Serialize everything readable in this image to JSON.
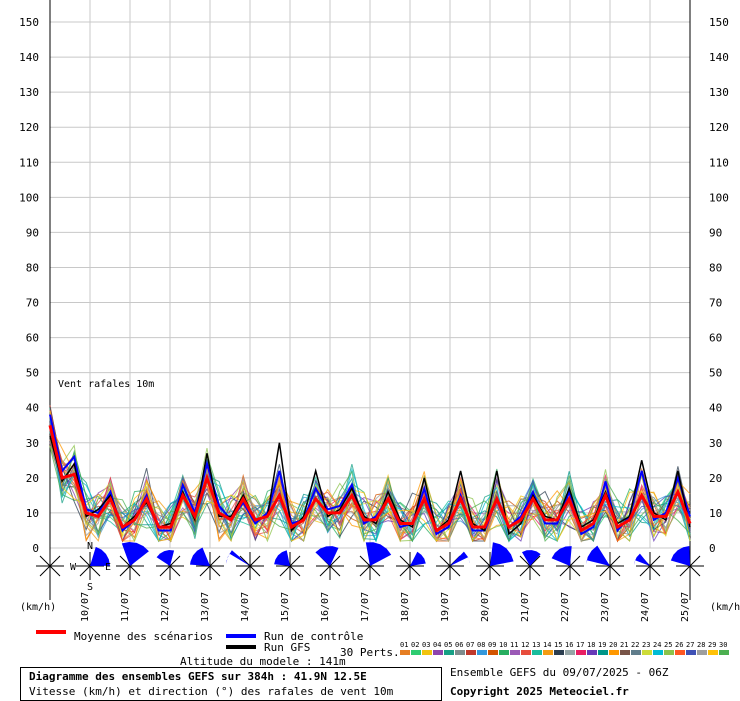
{
  "chart_data": {
    "type": "line",
    "y_unit_label": "(km/h)",
    "ylim": [
      0,
      150
    ],
    "y_ticks": [
      0,
      10,
      20,
      30,
      40,
      50,
      60,
      70,
      80,
      90,
      100,
      110,
      120,
      130,
      140,
      150
    ],
    "annotation": "Vent rafales 10m",
    "date_labels": [
      "10/07",
      "11/07",
      "12/07",
      "13/07",
      "14/07",
      "15/07",
      "16/07",
      "17/07",
      "18/07",
      "19/07",
      "20/07",
      "21/07",
      "22/07",
      "23/07",
      "24/07",
      "25/07"
    ],
    "series": [
      {
        "name": "Moyenne des scénarios",
        "color": "#ff0000",
        "values": [
          35,
          20,
          21,
          10,
          9,
          14,
          6,
          8,
          14,
          6,
          6,
          15,
          9,
          20,
          10,
          8,
          14,
          8,
          9,
          15,
          6,
          8,
          14,
          10,
          10,
          15,
          8,
          8,
          14,
          7,
          7,
          14,
          5,
          7,
          14,
          6,
          6,
          14,
          6,
          8,
          14,
          8,
          8,
          14,
          5,
          7,
          15,
          6,
          8,
          15,
          9,
          9,
          16,
          7
        ]
      },
      {
        "name": "Run de contrôle",
        "color": "#0000ff",
        "values": [
          38,
          22,
          26,
          11,
          10,
          16,
          5,
          8,
          15,
          5,
          5,
          18,
          10,
          24,
          12,
          8,
          13,
          7,
          10,
          22,
          7,
          8,
          17,
          11,
          12,
          18,
          7,
          9,
          14,
          6,
          7,
          17,
          4,
          6,
          15,
          5,
          5,
          14,
          6,
          9,
          16,
          7,
          7,
          16,
          4,
          6,
          19,
          5,
          9,
          22,
          8,
          10,
          20,
          9
        ]
      },
      {
        "name": "Run GFS",
        "color": "#000000",
        "values": [
          32,
          19,
          24,
          9,
          11,
          15,
          6,
          9,
          13,
          6,
          7,
          16,
          8,
          27,
          9,
          9,
          15,
          8,
          9,
          30,
          5,
          9,
          22,
          9,
          11,
          17,
          9,
          7,
          16,
          8,
          6,
          20,
          5,
          8,
          22,
          7,
          5,
          22,
          4,
          7,
          15,
          9,
          8,
          17,
          6,
          8,
          16,
          7,
          9,
          25,
          10,
          8,
          22,
          6
        ]
      }
    ],
    "perturbations_label": "30 Perts.",
    "perturbation_ids": [
      "01",
      "02",
      "03",
      "04",
      "05",
      "06",
      "07",
      "08",
      "09",
      "10",
      "11",
      "12",
      "13",
      "14",
      "15",
      "16",
      "17",
      "18",
      "19",
      "20",
      "21",
      "22",
      "23",
      "24",
      "25",
      "26",
      "27",
      "28",
      "29",
      "30"
    ],
    "perturbation_colors": [
      "#e67e22",
      "#2ecc71",
      "#f1c40f",
      "#8e44ad",
      "#16a085",
      "#7f8c8d",
      "#c0392b",
      "#3498db",
      "#d35400",
      "#27ae60",
      "#9b59b6",
      "#e74c3c",
      "#1abc9c",
      "#f39c12",
      "#2c3e50",
      "#95a5a6",
      "#e91e63",
      "#673ab7",
      "#009688",
      "#ff9800",
      "#795548",
      "#607d8b",
      "#cddc39",
      "#00bcd4",
      "#8bc34a",
      "#ff5722",
      "#3f51b5",
      "#9e9e9e",
      "#ffc107",
      "#4caf50"
    ],
    "wind_rose_letters": [
      "N",
      "W",
      "E",
      "S"
    ],
    "model_altitude": "Altitude du modele : 141m"
  },
  "info": {
    "title": "Diagramme des ensembles GEFS sur 384h : 41.9N 12.5E",
    "subtitle": "Vitesse (km/h) et direction (°) des rafales de vent 10m",
    "run": "Ensemble GEFS du 09/07/2025 - 06Z",
    "copyright": "Copyright 2025 Meteociel.fr"
  },
  "colors": {
    "grid": "#c8c8c8",
    "mean": "#ff0000",
    "control": "#0000ff",
    "gfs": "#000000",
    "wind": "#0000ff"
  }
}
